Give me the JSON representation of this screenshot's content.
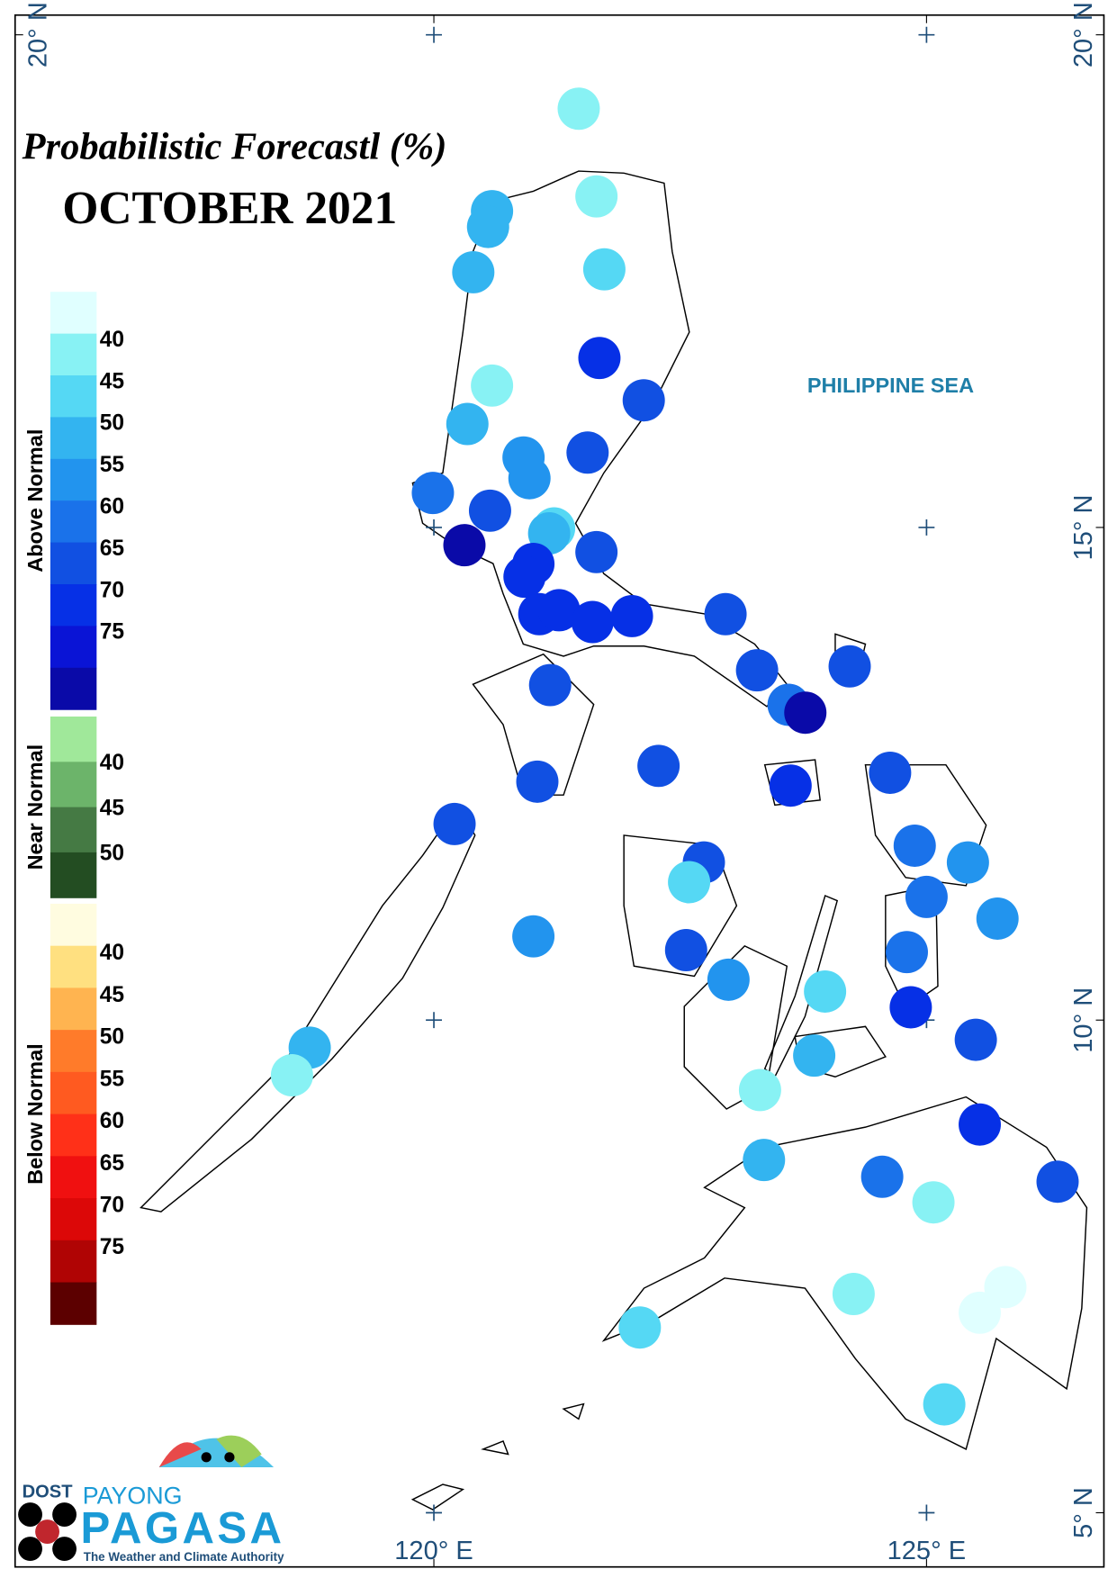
{
  "title": "Probabilistic Forecastl (%)",
  "subtitle": "OCTOBER 2021",
  "sea_label": "PHILIPPINE SEA",
  "map": {
    "xlim": [
      115.75,
      126.8
    ],
    "ylim": [
      4.45,
      20.2
    ],
    "xticks": [
      {
        "value": 120,
        "label": "120° E"
      },
      {
        "value": 125,
        "label": "125° E"
      }
    ],
    "yticks": [
      {
        "value": 20,
        "label": "20° N"
      },
      {
        "value": 15,
        "label": "15° N"
      },
      {
        "value": 10,
        "label": "10° N"
      },
      {
        "value": 5,
        "label": "5° N"
      }
    ]
  },
  "legend": [
    {
      "name": "Above Normal",
      "colors": [
        "#e0ffff",
        "#88f2f4",
        "#55d8f4",
        "#33b4f0",
        "#2294ee",
        "#1a72ea",
        "#1150e2",
        "#0630e6",
        "#0a14d6",
        "#0a0aa8"
      ],
      "labels": [
        40,
        45,
        50,
        55,
        60,
        65,
        70,
        75
      ]
    },
    {
      "name": "Near Normal",
      "colors": [
        "#a0e89a",
        "#6cb46a",
        "#457a44",
        "#234d22"
      ],
      "labels": [
        40,
        45,
        50
      ]
    },
    {
      "name": "Below Normal",
      "colors": [
        "#fffce0",
        "#ffe080",
        "#ffb450",
        "#ff7b2a",
        "#ff5a20",
        "#ff3018",
        "#f01010",
        "#dc0808",
        "#b00404",
        "#5c0000"
      ],
      "labels": [
        40,
        45,
        50,
        55,
        60,
        65,
        70,
        75
      ]
    }
  ],
  "stations": [
    {
      "lon": 121.47,
      "lat": 19.25,
      "color": "#88f2f4"
    },
    {
      "lon": 121.65,
      "lat": 18.36,
      "color": "#88f2f4"
    },
    {
      "lon": 120.59,
      "lat": 18.21,
      "color": "#33b4f0"
    },
    {
      "lon": 120.55,
      "lat": 18.05,
      "color": "#33b4f0"
    },
    {
      "lon": 121.73,
      "lat": 17.62,
      "color": "#55d8f4"
    },
    {
      "lon": 120.4,
      "lat": 17.59,
      "color": "#33b4f0"
    },
    {
      "lon": 121.68,
      "lat": 16.72,
      "color": "#0630e6"
    },
    {
      "lon": 122.13,
      "lat": 16.29,
      "color": "#1150e2"
    },
    {
      "lon": 120.59,
      "lat": 16.44,
      "color": "#88f2f4"
    },
    {
      "lon": 120.34,
      "lat": 16.05,
      "color": "#33b4f0"
    },
    {
      "lon": 120.91,
      "lat": 15.71,
      "color": "#2294ee"
    },
    {
      "lon": 120.97,
      "lat": 15.5,
      "color": "#2294ee"
    },
    {
      "lon": 121.56,
      "lat": 15.76,
      "color": "#1150e2"
    },
    {
      "lon": 119.99,
      "lat": 15.35,
      "color": "#1a72ea"
    },
    {
      "lon": 120.57,
      "lat": 15.17,
      "color": "#1150e2"
    },
    {
      "lon": 121.22,
      "lat": 14.99,
      "color": "#55d8f4"
    },
    {
      "lon": 121.17,
      "lat": 14.94,
      "color": "#33b4f0"
    },
    {
      "lon": 120.31,
      "lat": 14.82,
      "color": "#0a0aa8"
    },
    {
      "lon": 121.65,
      "lat": 14.75,
      "color": "#1150e2"
    },
    {
      "lon": 121.01,
      "lat": 14.63,
      "color": "#0630e6"
    },
    {
      "lon": 120.92,
      "lat": 14.5,
      "color": "#0630e6"
    },
    {
      "lon": 121.07,
      "lat": 14.12,
      "color": "#0630e6"
    },
    {
      "lon": 121.27,
      "lat": 14.16,
      "color": "#0630e6"
    },
    {
      "lon": 121.61,
      "lat": 14.04,
      "color": "#0630e6"
    },
    {
      "lon": 122.01,
      "lat": 14.1,
      "color": "#0630e6"
    },
    {
      "lon": 122.96,
      "lat": 14.12,
      "color": "#1150e2"
    },
    {
      "lon": 123.28,
      "lat": 13.55,
      "color": "#1150e2"
    },
    {
      "lon": 124.22,
      "lat": 13.59,
      "color": "#1150e2"
    },
    {
      "lon": 123.6,
      "lat": 13.2,
      "color": "#1a72ea"
    },
    {
      "lon": 123.77,
      "lat": 13.12,
      "color": "#0a0aa8"
    },
    {
      "lon": 121.18,
      "lat": 13.4,
      "color": "#1150e2"
    },
    {
      "lon": 122.28,
      "lat": 12.58,
      "color": "#1150e2"
    },
    {
      "lon": 121.05,
      "lat": 12.42,
      "color": "#1150e2"
    },
    {
      "lon": 123.62,
      "lat": 12.38,
      "color": "#0630e6"
    },
    {
      "lon": 124.63,
      "lat": 12.51,
      "color": "#1150e2"
    },
    {
      "lon": 120.21,
      "lat": 11.99,
      "color": "#1150e2"
    },
    {
      "lon": 122.74,
      "lat": 11.6,
      "color": "#1150e2"
    },
    {
      "lon": 122.59,
      "lat": 11.4,
      "color": "#55d8f4"
    },
    {
      "lon": 124.88,
      "lat": 11.77,
      "color": "#1a72ea"
    },
    {
      "lon": 125.42,
      "lat": 11.6,
      "color": "#2294ee"
    },
    {
      "lon": 125.0,
      "lat": 11.25,
      "color": "#1a72ea"
    },
    {
      "lon": 125.72,
      "lat": 11.03,
      "color": "#2294ee"
    },
    {
      "lon": 121.01,
      "lat": 10.85,
      "color": "#2294ee"
    },
    {
      "lon": 122.56,
      "lat": 10.71,
      "color": "#1150e2"
    },
    {
      "lon": 124.8,
      "lat": 10.69,
      "color": "#1a72ea"
    },
    {
      "lon": 122.99,
      "lat": 10.41,
      "color": "#2294ee"
    },
    {
      "lon": 123.97,
      "lat": 10.29,
      "color": "#55d8f4"
    },
    {
      "lon": 124.84,
      "lat": 10.13,
      "color": "#0630e6"
    },
    {
      "lon": 125.5,
      "lat": 9.8,
      "color": "#1150e2"
    },
    {
      "lon": 118.74,
      "lat": 9.72,
      "color": "#33b4f0"
    },
    {
      "lon": 118.56,
      "lat": 9.44,
      "color": "#88f2f4"
    },
    {
      "lon": 123.86,
      "lat": 9.64,
      "color": "#33b4f0"
    },
    {
      "lon": 123.31,
      "lat": 9.29,
      "color": "#88f2f4"
    },
    {
      "lon": 125.54,
      "lat": 8.94,
      "color": "#0630e6"
    },
    {
      "lon": 123.35,
      "lat": 8.58,
      "color": "#33b4f0"
    },
    {
      "lon": 124.55,
      "lat": 8.41,
      "color": "#1a72ea"
    },
    {
      "lon": 126.33,
      "lat": 8.36,
      "color": "#1150e2"
    },
    {
      "lon": 125.07,
      "lat": 8.15,
      "color": "#88f2f4"
    },
    {
      "lon": 124.26,
      "lat": 7.22,
      "color": "#88f2f4"
    },
    {
      "lon": 125.8,
      "lat": 7.29,
      "color": "#e0ffff"
    },
    {
      "lon": 125.54,
      "lat": 7.03,
      "color": "#e0ffff"
    },
    {
      "lon": 122.09,
      "lat": 6.88,
      "color": "#55d8f4"
    },
    {
      "lon": 125.18,
      "lat": 6.1,
      "color": "#55d8f4"
    }
  ],
  "logo": {
    "agency": "DOST",
    "brand_top": "PAYONG",
    "brand": "PAGASA",
    "tagline": "The Weather and Climate Authority"
  }
}
